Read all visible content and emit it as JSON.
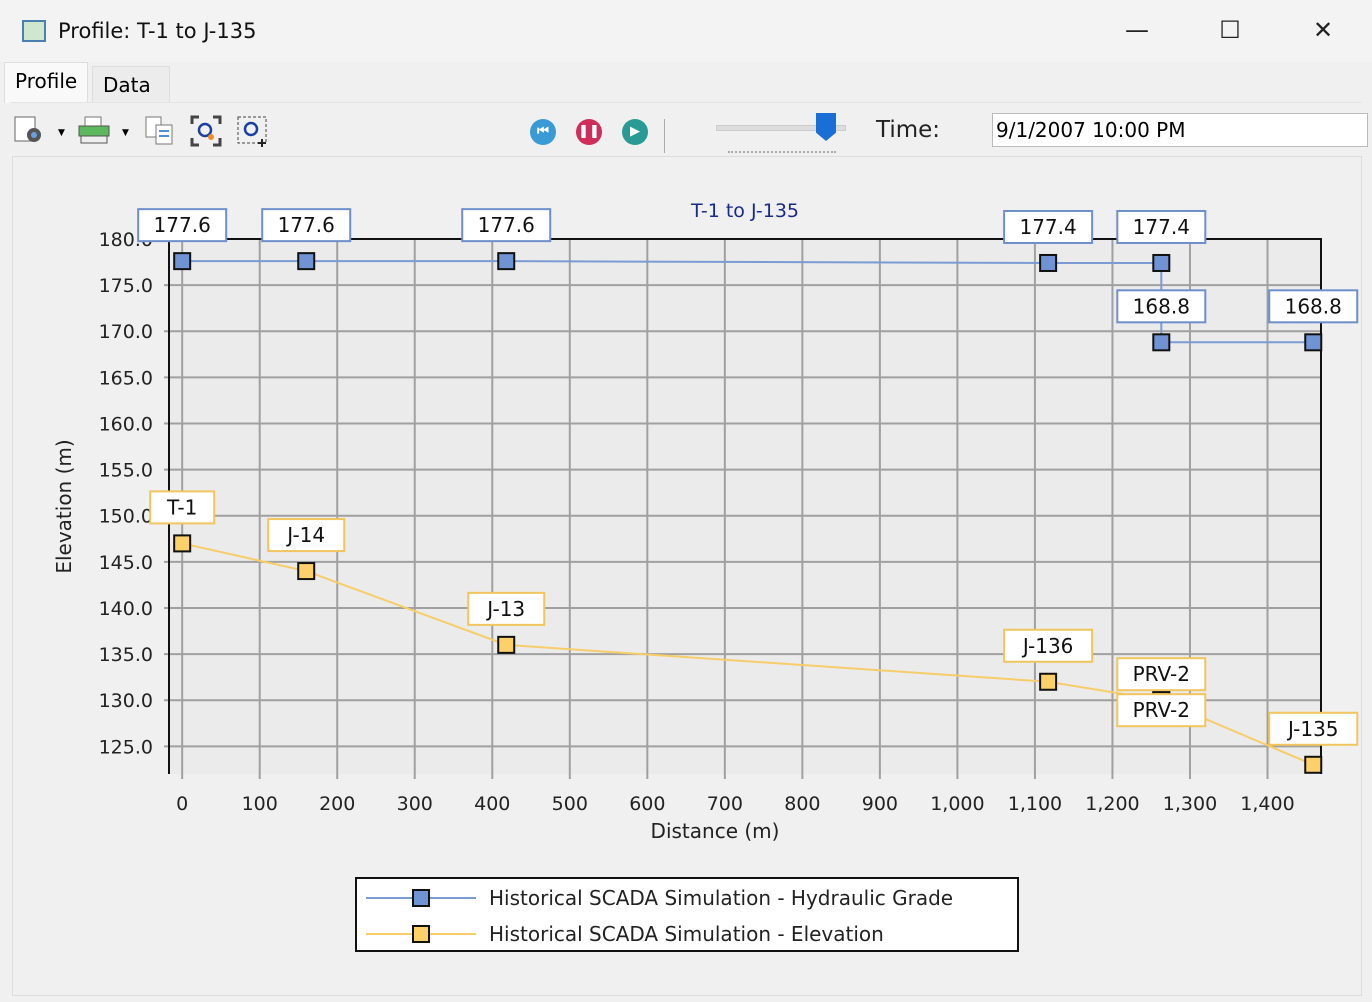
{
  "window": {
    "title": "Profile: T-1 to J-135",
    "minimize": "—",
    "maximize": "☐",
    "close": "✕"
  },
  "tabs": [
    {
      "label": "Profile",
      "active": true
    },
    {
      "label": "Data",
      "active": false
    }
  ],
  "toolbar": {
    "icons": [
      "chart-settings-icon",
      "print-icon",
      "copy-icon",
      "zoom-extents-icon",
      "zoom-window-icon"
    ],
    "playback": [
      "rewind-icon",
      "pause-icon",
      "play-icon"
    ],
    "time_label": "Time:",
    "time_value": "9/1/2007 10:00 PM",
    "slider_value": 0.85
  },
  "chart_data": {
    "type": "line",
    "title": "T-1 to J-135",
    "xlabel": "Distance (m)",
    "ylabel": "Elevation (m)",
    "xlim": [
      -17,
      1469
    ],
    "ylim": [
      122,
      180
    ],
    "xticks": [
      0,
      100,
      200,
      300,
      400,
      500,
      600,
      700,
      800,
      900,
      1000,
      1100,
      1200,
      1300,
      1400
    ],
    "xtick_labels": [
      "0",
      "100",
      "200",
      "300",
      "400",
      "500",
      "600",
      "700",
      "800",
      "900",
      "1,000",
      "1,100",
      "1,200",
      "1,300",
      "1,400"
    ],
    "yticks": [
      125,
      130,
      135,
      140,
      145,
      150,
      155,
      160,
      165,
      170,
      175,
      180
    ],
    "ytick_labels": [
      "125.0",
      "130.0",
      "135.0",
      "140.0",
      "145.0",
      "150.0",
      "155.0",
      "160.0",
      "165.0",
      "170.0",
      "175.0",
      "180.0"
    ],
    "grid": true,
    "legend_position": "bottom",
    "series": [
      {
        "name": "Historical SCADA Simulation - Hydraulic Grade",
        "color": "#7b9bd4",
        "marker_color": "#6f93d3",
        "points": [
          {
            "x": 0,
            "y": 177.6,
            "label": "177.6"
          },
          {
            "x": 160,
            "y": 177.6,
            "label": "177.6"
          },
          {
            "x": 418,
            "y": 177.6,
            "label": "177.6"
          },
          {
            "x": 1117,
            "y": 177.4,
            "label": "177.4"
          },
          {
            "x": 1263,
            "y": 177.4,
            "label": "177.4"
          },
          {
            "x": 1263,
            "y": 168.8,
            "label": "168.8"
          },
          {
            "x": 1459,
            "y": 168.8,
            "label": "168.8"
          }
        ]
      },
      {
        "name": "Historical SCADA Simulation - Elevation",
        "color": "#f7cd6a",
        "marker_color": "#fdd06a",
        "points": [
          {
            "x": 0,
            "y": 147.0,
            "label": "T-1"
          },
          {
            "x": 160,
            "y": 144.0,
            "label": "J-14"
          },
          {
            "x": 418,
            "y": 136.0,
            "label": "J-13"
          },
          {
            "x": 1117,
            "y": 132.0,
            "label": "J-136"
          },
          {
            "x": 1263,
            "y": 130.0,
            "label": "PRV-2"
          },
          {
            "x": 1263,
            "y": 130.0,
            "label": "PRV-2"
          },
          {
            "x": 1459,
            "y": 123.0,
            "label": "J-135"
          }
        ]
      }
    ]
  }
}
